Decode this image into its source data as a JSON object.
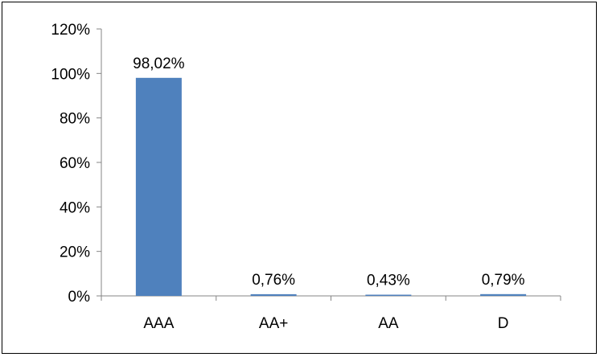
{
  "chart_data": {
    "type": "bar",
    "title": "",
    "xlabel": "",
    "ylabel": "",
    "categories": [
      "AAA",
      "AA+",
      "AA",
      "D"
    ],
    "values": [
      98.02,
      0.76,
      0.43,
      0.79
    ],
    "data_labels": [
      "98,02%",
      "0,76%",
      "0,43%",
      "0,79%"
    ],
    "ylim": [
      0,
      120
    ],
    "yticks": [
      0,
      20,
      40,
      60,
      80,
      100,
      120
    ],
    "ytick_labels": [
      "0%",
      "20%",
      "40%",
      "60%",
      "80%",
      "100%",
      "120%"
    ],
    "grid": false,
    "legend": "none",
    "colors": {
      "bar": "#4f81bd",
      "axis": "#868686",
      "text": "#000000"
    }
  }
}
